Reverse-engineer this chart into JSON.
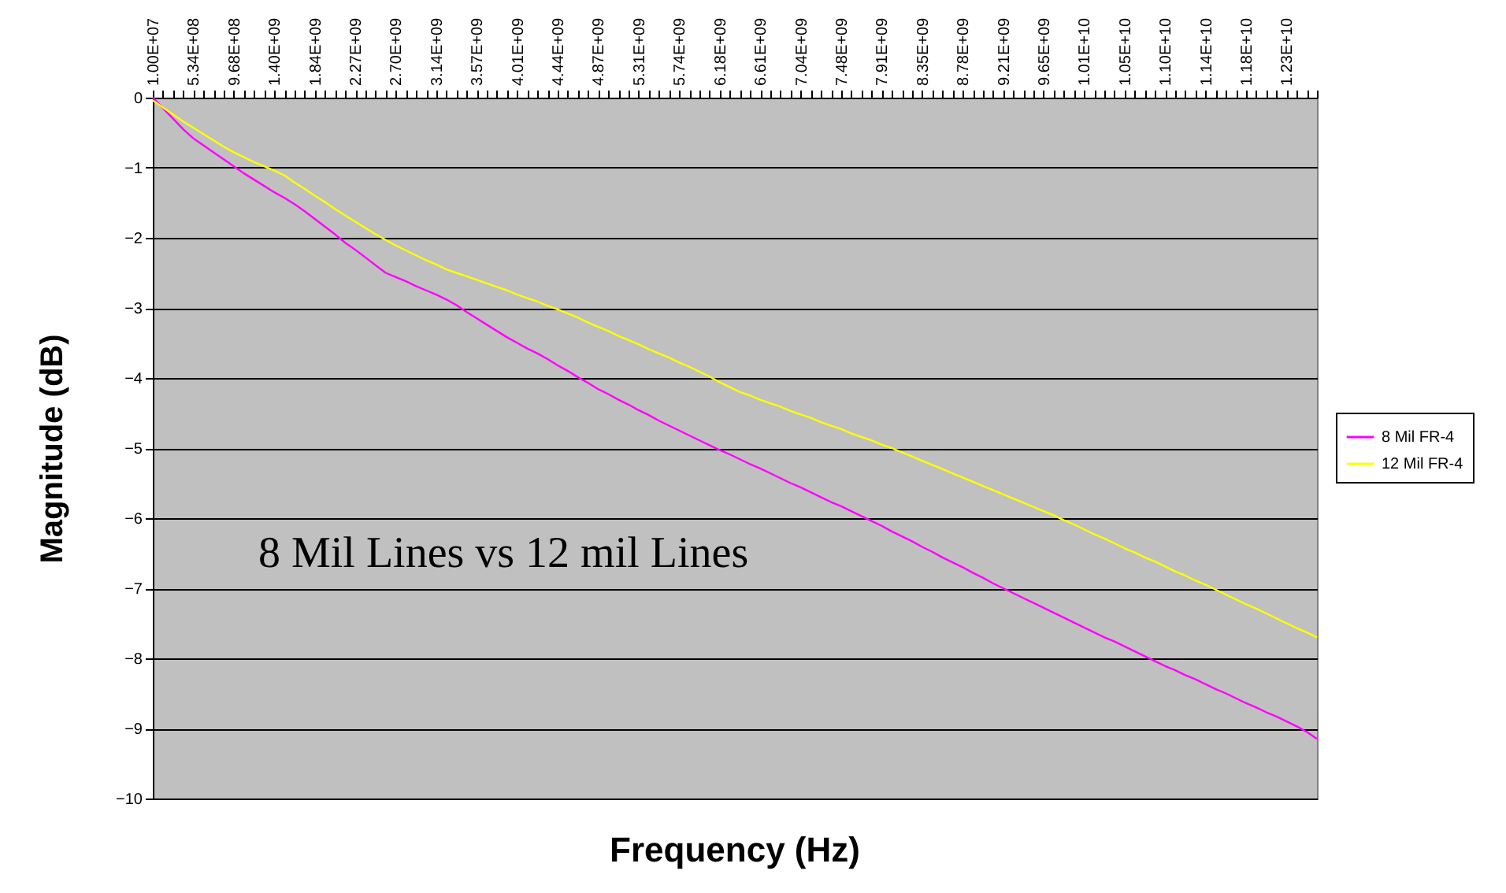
{
  "chart_data": {
    "type": "line",
    "xlabel": "Frequency (Hz)",
    "ylabel": "Magnitude (dB)",
    "annotations": [
      "8 Mil Lines vs 12 mil Lines"
    ],
    "categories": [
      "1.00E+07",
      null,
      null,
      null,
      "5.34E+08",
      null,
      null,
      null,
      "9.68E+08",
      null,
      null,
      null,
      "1.40E+09",
      null,
      null,
      null,
      "1.84E+09",
      null,
      null,
      null,
      "2.27E+09",
      null,
      null,
      null,
      "2.70E+09",
      null,
      null,
      null,
      "3.14E+09",
      null,
      null,
      null,
      "3.57E+09",
      null,
      null,
      null,
      "4.01E+09",
      null,
      null,
      null,
      "4.44E+09",
      null,
      null,
      null,
      "4.87E+09",
      null,
      null,
      null,
      "5.31E+09",
      null,
      null,
      null,
      "5.74E+09",
      null,
      null,
      null,
      "6.18E+09",
      null,
      null,
      null,
      "6.61E+09",
      null,
      null,
      null,
      "7.04E+09",
      null,
      null,
      null,
      "7.48E+09",
      null,
      null,
      null,
      "7.91E+09",
      null,
      null,
      null,
      "8.35E+09",
      null,
      null,
      null,
      "8.78E+09",
      null,
      null,
      null,
      "9.21E+09",
      null,
      null,
      null,
      "9.65E+09",
      null,
      null,
      null,
      "1.01E+10",
      null,
      null,
      null,
      "1.05E+10",
      null,
      null,
      null,
      "1.10E+10",
      null,
      null,
      null,
      "1.14E+10",
      null,
      null,
      null,
      "1.18E+10",
      null,
      null,
      null,
      "1.23E+10",
      null,
      null,
      null
    ],
    "series": [
      {
        "name": "8 Mil FR-4",
        "color": "#ff00ff",
        "values": [
          0,
          -0.15,
          -0.3,
          -0.45,
          -0.58,
          -0.68,
          -0.78,
          -0.88,
          -0.98,
          -1.08,
          -1.17,
          -1.26,
          -1.35,
          -1.43,
          -1.52,
          -1.62,
          -1.73,
          -1.84,
          -1.95,
          -2.07,
          -2.17,
          -2.28,
          -2.39,
          -2.5,
          -2.56,
          -2.62,
          -2.69,
          -2.75,
          -2.81,
          -2.88,
          -2.96,
          -3.06,
          -3.15,
          -3.24,
          -3.33,
          -3.42,
          -3.5,
          -3.58,
          -3.65,
          -3.73,
          -3.82,
          -3.9,
          -3.99,
          -4.07,
          -4.16,
          -4.23,
          -4.31,
          -4.38,
          -4.46,
          -4.53,
          -4.61,
          -4.68,
          -4.75,
          -4.82,
          -4.89,
          -4.96,
          -5.03,
          -5.09,
          -5.16,
          -5.23,
          -5.29,
          -5.36,
          -5.43,
          -5.5,
          -5.56,
          -5.63,
          -5.7,
          -5.77,
          -5.83,
          -5.9,
          -5.97,
          -6.04,
          -6.11,
          -6.19,
          -6.26,
          -6.33,
          -6.41,
          -6.48,
          -6.56,
          -6.63,
          -6.7,
          -6.78,
          -6.85,
          -6.93,
          -7.0,
          -7.07,
          -7.14,
          -7.21,
          -7.28,
          -7.35,
          -7.42,
          -7.49,
          -7.56,
          -7.63,
          -7.7,
          -7.76,
          -7.83,
          -7.9,
          -7.97,
          -8.04,
          -8.11,
          -8.17,
          -8.24,
          -8.3,
          -8.37,
          -8.44,
          -8.5,
          -8.57,
          -8.64,
          -8.7,
          -8.77,
          -8.83,
          -8.9,
          -8.97,
          -9.05,
          -9.15
        ]
      },
      {
        "name": "12 Mil FR-4",
        "color": "#ffff00",
        "values": [
          -0.04,
          -0.14,
          -0.24,
          -0.34,
          -0.43,
          -0.52,
          -0.61,
          -0.7,
          -0.78,
          -0.85,
          -0.92,
          -0.98,
          -1.04,
          -1.11,
          -1.21,
          -1.3,
          -1.4,
          -1.49,
          -1.59,
          -1.68,
          -1.77,
          -1.86,
          -1.95,
          -2.03,
          -2.11,
          -2.18,
          -2.25,
          -2.32,
          -2.38,
          -2.45,
          -2.5,
          -2.55,
          -2.6,
          -2.65,
          -2.7,
          -2.75,
          -2.81,
          -2.86,
          -2.91,
          -2.97,
          -3.02,
          -3.08,
          -3.14,
          -3.21,
          -3.27,
          -3.33,
          -3.4,
          -3.46,
          -3.52,
          -3.59,
          -3.65,
          -3.71,
          -3.78,
          -3.84,
          -3.91,
          -3.98,
          -4.06,
          -4.13,
          -4.2,
          -4.25,
          -4.31,
          -4.36,
          -4.41,
          -4.47,
          -4.52,
          -4.57,
          -4.63,
          -4.68,
          -4.73,
          -4.79,
          -4.84,
          -4.89,
          -4.95,
          -5.0,
          -5.06,
          -5.12,
          -5.18,
          -5.24,
          -5.3,
          -5.36,
          -5.42,
          -5.48,
          -5.54,
          -5.6,
          -5.66,
          -5.72,
          -5.78,
          -5.84,
          -5.9,
          -5.96,
          -6.03,
          -6.09,
          -6.16,
          -6.23,
          -6.29,
          -6.36,
          -6.43,
          -6.49,
          -6.56,
          -6.62,
          -6.69,
          -6.76,
          -6.82,
          -6.89,
          -6.95,
          -7.02,
          -7.09,
          -7.16,
          -7.23,
          -7.29,
          -7.36,
          -7.43,
          -7.5,
          -7.57,
          -7.63,
          -7.7
        ]
      }
    ],
    "ylim": [
      -10,
      0
    ],
    "yticks": [
      -10,
      -9,
      -8,
      -7,
      -6,
      -5,
      -4,
      -3,
      -2,
      -1,
      0
    ],
    "grid": "y",
    "legend": "right",
    "marker": "none",
    "line_style": "solid"
  }
}
